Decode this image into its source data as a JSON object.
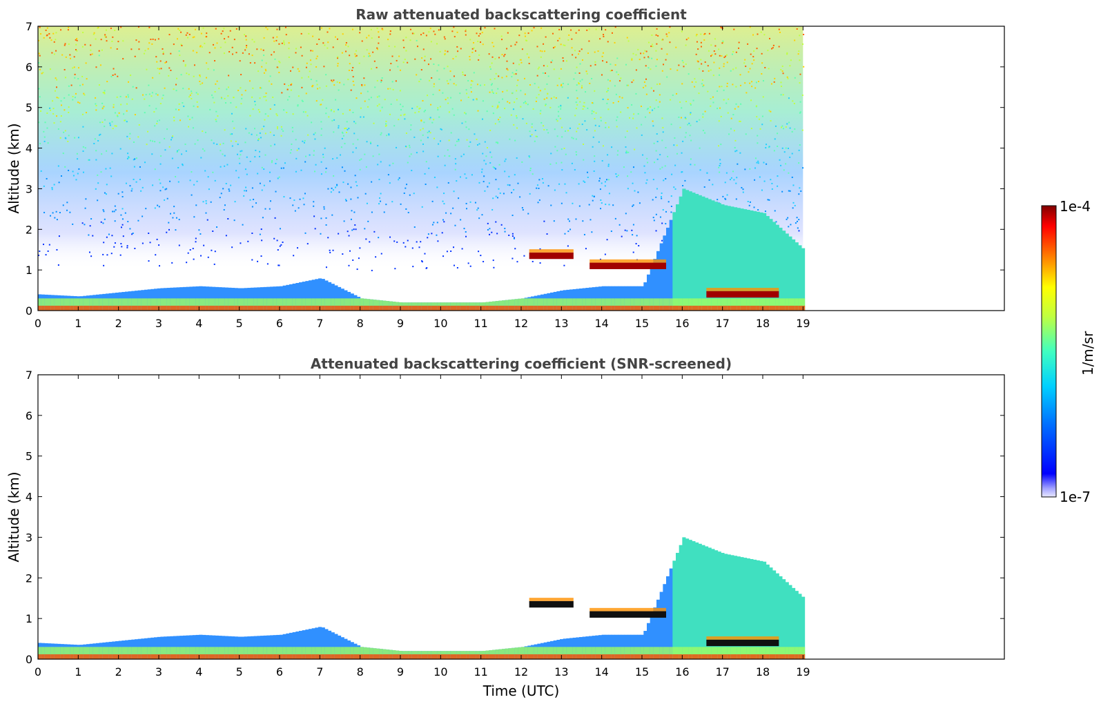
{
  "chart_data": [
    {
      "type": "heatmap",
      "title": "Raw attenuated backscattering coefficient",
      "xlabel": "",
      "ylabel": "Altitude (km)",
      "xlim": [
        0,
        24
      ],
      "ylim": [
        0,
        7
      ],
      "xticks": [
        "0",
        "1",
        "2",
        "3",
        "4",
        "5",
        "6",
        "7",
        "8",
        "9",
        "10",
        "11",
        "12",
        "13",
        "14",
        "15",
        "16",
        "17",
        "18",
        "19"
      ],
      "yticks": [
        "0",
        "1",
        "2",
        "3",
        "4",
        "5",
        "6",
        "7"
      ],
      "data_end_hour": 19,
      "features": {
        "boundary_layer_top_km": [
          0.4,
          0.35,
          0.45,
          0.55,
          0.6,
          0.55,
          0.6,
          0.8,
          0.3,
          0.2,
          0.2,
          0.2,
          0.3,
          0.5,
          0.6,
          0.6,
          3.0,
          2.6,
          2.4,
          1.5
        ],
        "cloud_layers": [
          {
            "start_h": 12.2,
            "end_h": 13.3,
            "altitude_km": 1.35
          },
          {
            "start_h": 13.7,
            "end_h": 15.6,
            "altitude_km": 1.1
          },
          {
            "start_h": 16.6,
            "end_h": 18.4,
            "altitude_km": 0.4
          }
        ]
      }
    },
    {
      "type": "heatmap",
      "title": "Attenuated backscattering coefficient (SNR-screened)",
      "xlabel": "Time (UTC)",
      "ylabel": "Altitude (km)",
      "xlim": [
        0,
        24
      ],
      "ylim": [
        0,
        7
      ],
      "xticks": [
        "0",
        "1",
        "2",
        "3",
        "4",
        "5",
        "6",
        "7",
        "8",
        "9",
        "10",
        "11",
        "12",
        "13",
        "14",
        "15",
        "16",
        "17",
        "18",
        "19"
      ],
      "yticks": [
        "0",
        "1",
        "2",
        "3",
        "4",
        "5",
        "6",
        "7"
      ],
      "data_end_hour": 19
    }
  ],
  "colorbar": {
    "label": "1/m/sr",
    "max_label": "1e-4",
    "min_label": "1e-7",
    "scale": "log",
    "range": [
      1e-07,
      0.0001
    ],
    "colormap": "jet"
  }
}
